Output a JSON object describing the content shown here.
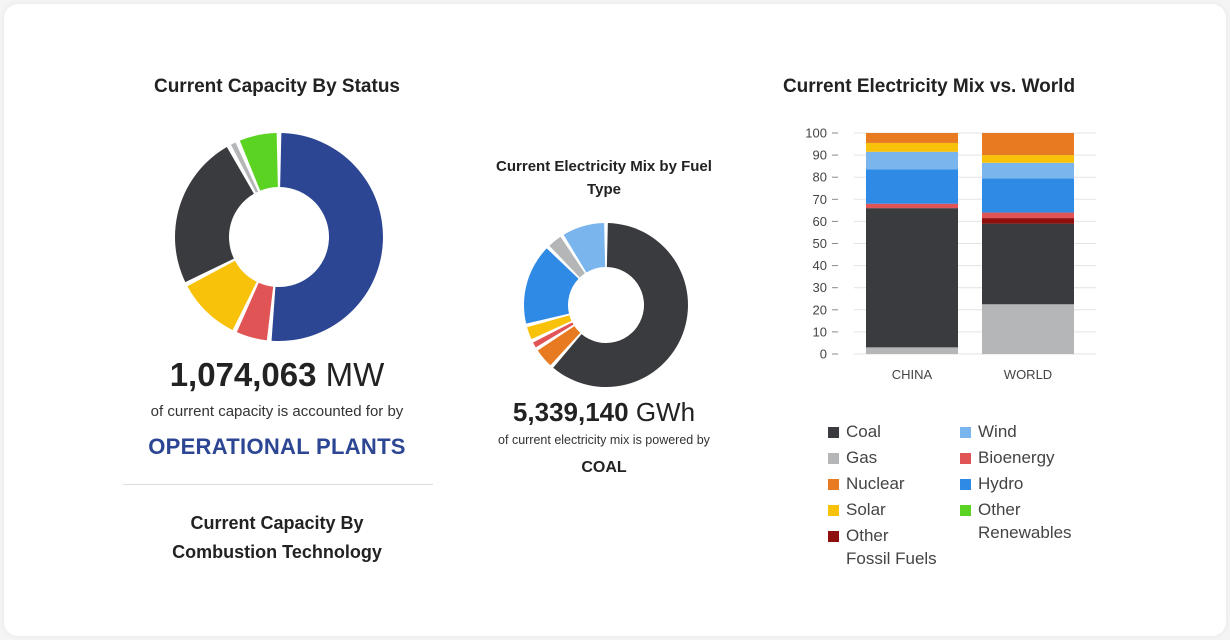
{
  "colors": {
    "Coal": "#3a3b3f",
    "Gas": "#b4b6b8",
    "Nuclear": "#e87a22",
    "Solar": "#f8c10a",
    "Other Fossil Fuels": "#8e0f0b",
    "Wind": "#7ab5ee",
    "Bioenergy": "#e05456",
    "Hydro": "#2f8ae5",
    "Other Renewables": "#5bd323",
    "Operational": "#2c4694",
    "status_text": "#2c4694"
  },
  "left": {
    "title": "Current Capacity By Status",
    "value_number": "1,074,063",
    "value_unit": "MW",
    "caption": "of current capacity is accounted for by",
    "status_label": "OPERATIONAL PLANTS",
    "section2_title_line1": "Current Capacity By",
    "section2_title_line2": "Combustion Technology"
  },
  "middle": {
    "title_line1": "Current Electricity Mix by Fuel",
    "title_line2": "Type",
    "value_number": "5,339,140",
    "value_unit": "GWh",
    "caption": "of current electricity mix is powered by",
    "fuel_label": "COAL"
  },
  "right": {
    "title": "Current Electricity Mix vs. World"
  },
  "legend": [
    {
      "label": "Coal",
      "color": "#3a3b3f"
    },
    {
      "label": "Gas",
      "color": "#b4b6b8"
    },
    {
      "label": "Nuclear",
      "color": "#e87a22"
    },
    {
      "label": "Solar",
      "color": "#f8c10a"
    },
    {
      "label": "Other\nFossil Fuels",
      "color": "#8e0f0b"
    },
    {
      "label": "Wind",
      "color": "#7ab5ee"
    },
    {
      "label": "Bioenergy",
      "color": "#e05456"
    },
    {
      "label": "Hydro",
      "color": "#2f8ae5"
    },
    {
      "label": "Other\nRenewables",
      "color": "#5bd323"
    }
  ],
  "chart_data": [
    {
      "type": "pie",
      "title": "Current Capacity By Status",
      "donut": true,
      "slices": [
        {
          "label": "Operational",
          "value": 51.5,
          "color": "#2c4694"
        },
        {
          "label": "Red segment",
          "value": 5.5,
          "color": "#e05456"
        },
        {
          "label": "Yellow segment",
          "value": 10.5,
          "color": "#f8c10a"
        },
        {
          "label": "Dark segment",
          "value": 24.5,
          "color": "#3a3b3f"
        },
        {
          "label": "Gray segment",
          "value": 1.5,
          "color": "#b4b6b8"
        },
        {
          "label": "Green segment",
          "value": 6.5,
          "color": "#5bd323"
        }
      ]
    },
    {
      "type": "pie",
      "title": "Current Electricity Mix by Fuel Type",
      "donut": true,
      "slices": [
        {
          "label": "Coal",
          "value": 61.5,
          "color": "#3a3b3f"
        },
        {
          "label": "Nuclear",
          "value": 4.5,
          "color": "#e87a22"
        },
        {
          "label": "Bioenergy",
          "value": 1.8,
          "color": "#e05456"
        },
        {
          "label": "Solar",
          "value": 3.2,
          "color": "#f8c10a"
        },
        {
          "label": "Hydro",
          "value": 16.5,
          "color": "#2f8ae5"
        },
        {
          "label": "Gas",
          "value": 3.5,
          "color": "#b4b6b8"
        },
        {
          "label": "Wind",
          "value": 9.0,
          "color": "#7ab5ee"
        }
      ]
    },
    {
      "type": "bar",
      "stacked": true,
      "title": "Current Electricity Mix vs. World",
      "categories": [
        "CHINA",
        "WORLD"
      ],
      "ylim": [
        0,
        100
      ],
      "yticks": [
        0,
        10,
        20,
        30,
        40,
        50,
        60,
        70,
        80,
        90,
        100
      ],
      "grid": true,
      "series": [
        {
          "name": "Gas",
          "values": [
            3,
            22.5
          ],
          "color": "#b4b6b8"
        },
        {
          "name": "Coal",
          "values": [
            63,
            36.5
          ],
          "color": "#3a3b3f"
        },
        {
          "name": "Other Fossil Fuels",
          "values": [
            0,
            2.5
          ],
          "color": "#8e0f0b"
        },
        {
          "name": "Bioenergy",
          "values": [
            2,
            2.5
          ],
          "color": "#e05456"
        },
        {
          "name": "Hydro",
          "values": [
            15.5,
            15.5
          ],
          "color": "#2f8ae5"
        },
        {
          "name": "Wind",
          "values": [
            8,
            7
          ],
          "color": "#7ab5ee"
        },
        {
          "name": "Solar",
          "values": [
            4,
            3.5
          ],
          "color": "#f8c10a"
        },
        {
          "name": "Nuclear",
          "values": [
            4.5,
            10
          ],
          "color": "#e87a22"
        }
      ]
    }
  ]
}
